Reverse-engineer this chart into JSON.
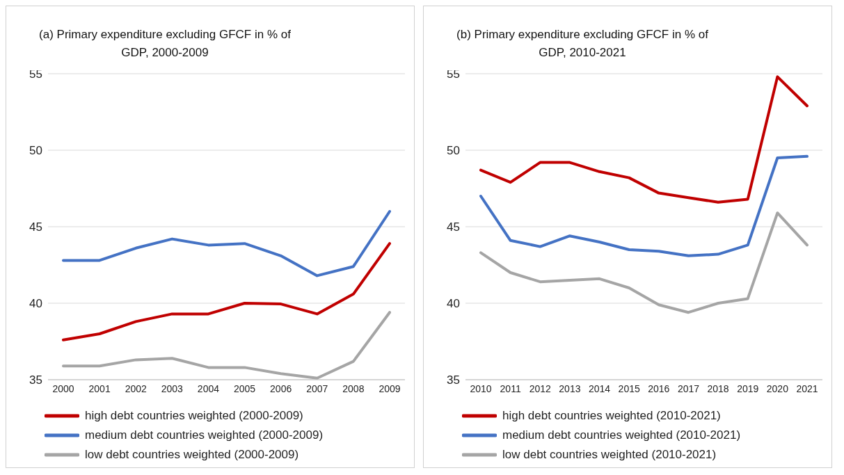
{
  "chart_data": [
    {
      "type": "line",
      "title": "(a) Primary expenditure excluding GFCF in % of GDP, 2000-2009",
      "categories": [
        "2000",
        "2001",
        "2002",
        "2003",
        "2004",
        "2005",
        "2006",
        "2007",
        "2008",
        "2009"
      ],
      "series": [
        {
          "name": "high debt countries weighted (2000-2009)",
          "color": "#c00000",
          "values": [
            37.6,
            38.0,
            38.8,
            39.3,
            39.3,
            40.0,
            39.95,
            39.3,
            40.6,
            43.9
          ]
        },
        {
          "name": "medium debt countries weighted (2000-2009)",
          "color": "#4472c4",
          "values": [
            42.8,
            42.8,
            43.6,
            44.2,
            43.8,
            43.9,
            43.1,
            41.8,
            42.4,
            46.0
          ]
        },
        {
          "name": "low debt countries weighted (2000-2009)",
          "color": "#a5a5a5",
          "values": [
            35.9,
            35.9,
            36.3,
            36.4,
            35.8,
            35.8,
            35.4,
            35.1,
            36.2,
            39.4
          ]
        }
      ],
      "ylim": [
        35,
        55
      ],
      "yticks": [
        35,
        40,
        45,
        50,
        55
      ],
      "grid": "y",
      "legend": "bottom",
      "marker": "none",
      "line_style": "solid"
    },
    {
      "type": "line",
      "title": "(b) Primary expenditure excluding GFCF in % of GDP, 2010-2021",
      "categories": [
        "2010",
        "2011",
        "2012",
        "2013",
        "2014",
        "2015",
        "2016",
        "2017",
        "2018",
        "2019",
        "2020",
        "2021"
      ],
      "series": [
        {
          "name": "high debt countries weighted (2010-2021)",
          "color": "#c00000",
          "values": [
            48.7,
            47.9,
            49.2,
            49.2,
            48.6,
            48.2,
            47.2,
            46.9,
            46.6,
            46.8,
            54.8,
            52.9
          ]
        },
        {
          "name": "medium debt countries weighted (2010-2021)",
          "color": "#4472c4",
          "values": [
            47.0,
            44.1,
            43.7,
            44.4,
            44.0,
            43.5,
            43.4,
            43.1,
            43.2,
            43.8,
            49.5,
            49.6
          ]
        },
        {
          "name": "low debt countries weighted (2010-2021)",
          "color": "#a5a5a5",
          "values": [
            43.3,
            42.0,
            41.4,
            41.5,
            41.6,
            41.0,
            39.9,
            39.4,
            40.0,
            40.3,
            45.9,
            43.8
          ]
        }
      ],
      "ylim": [
        35,
        55
      ],
      "yticks": [
        35,
        40,
        45,
        50,
        55
      ],
      "grid": "y",
      "legend": "bottom",
      "marker": "none",
      "line_style": "solid"
    }
  ]
}
